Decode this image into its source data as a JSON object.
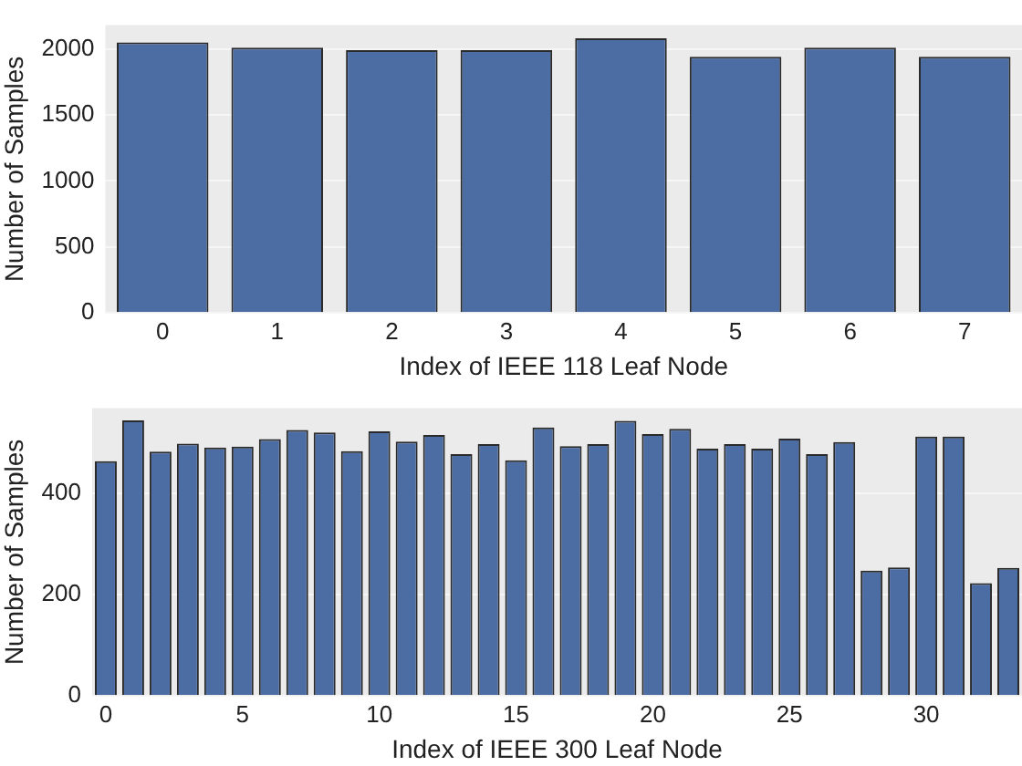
{
  "chart_data": [
    {
      "type": "bar",
      "xlabel": "Index of IEEE 118 Leaf Node",
      "ylabel": "Number of Samples",
      "categories": [
        "0",
        "1",
        "2",
        "3",
        "4",
        "5",
        "6",
        "7"
      ],
      "values": [
        2050,
        2010,
        1990,
        1990,
        2080,
        1940,
        2010,
        1940
      ],
      "color": "#4c6ca4",
      "ylim": [
        0,
        2180
      ],
      "yticks": [
        0,
        500,
        1000,
        1500,
        2000
      ],
      "grid": "y"
    },
    {
      "type": "bar",
      "xlabel": "Index of IEEE 300 Leaf Node",
      "ylabel": "Number of Samples",
      "categories": [
        "0",
        null,
        null,
        null,
        null,
        "5",
        null,
        null,
        null,
        null,
        "10",
        null,
        null,
        null,
        null,
        "15",
        null,
        null,
        null,
        null,
        "20",
        null,
        null,
        null,
        null,
        "25",
        null,
        null,
        null,
        null,
        "30",
        null,
        null,
        null
      ],
      "values": [
        464,
        545,
        483,
        499,
        491,
        493,
        508,
        526,
        521,
        484,
        523,
        503,
        516,
        478,
        498,
        466,
        531,
        494,
        498,
        544,
        518,
        528,
        489,
        498,
        489,
        509,
        478,
        502,
        248,
        254,
        513,
        513,
        223,
        253
      ],
      "color": "#4c6ca4",
      "ylim": [
        0,
        569
      ],
      "yticks": [
        0,
        200,
        400
      ],
      "grid": "y"
    }
  ]
}
